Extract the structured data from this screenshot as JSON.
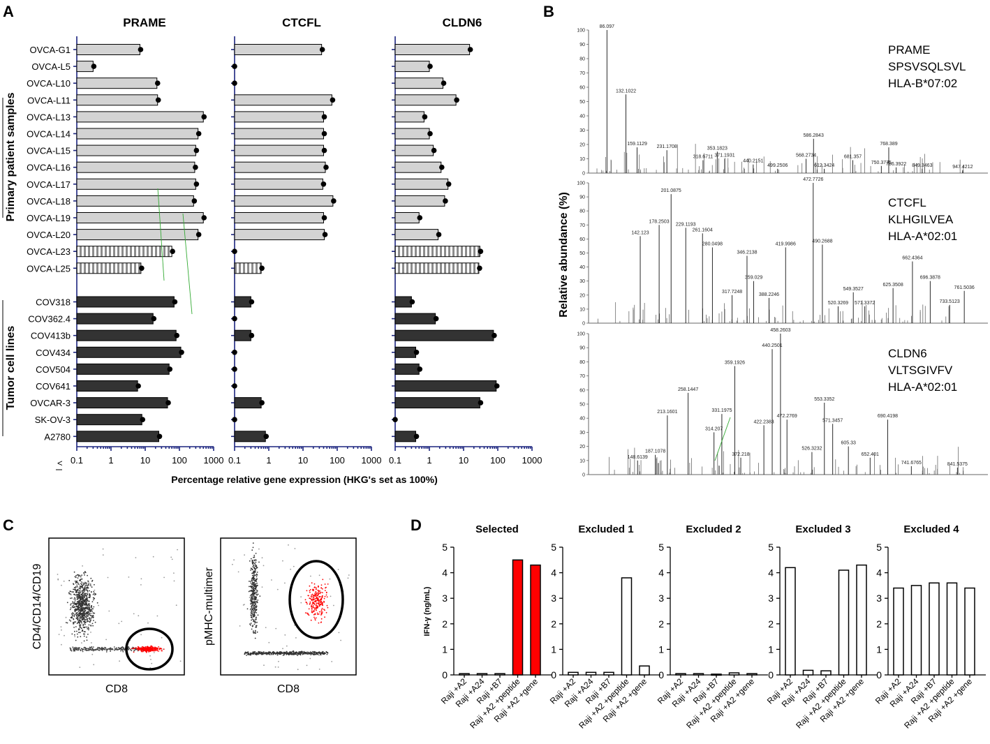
{
  "panels": {
    "a": "A",
    "b": "B",
    "c": "C",
    "d": "D"
  },
  "colors": {
    "primary": "#d3d3d3",
    "striped": "#a9a9a9",
    "cell": "#333333",
    "axis": "#1a237e",
    "red": "#ff0000"
  },
  "panel_a": {
    "genes": [
      "PRAME",
      "CTCFL",
      "CLDN6"
    ],
    "group_primary": "Primary patient samples",
    "group_lines": "Tumor cell lines",
    "xlabel": "Percentage relative gene expression (HKG's set as 100%)",
    "lt": "<",
    "xticks": [
      "0.1",
      "1",
      "10",
      "100",
      "1000"
    ]
  },
  "panel_b": {
    "ylabel": "Relative abundance (%)",
    "yticks": [
      "0",
      "10",
      "20",
      "30",
      "40",
      "50",
      "60",
      "70",
      "80",
      "90",
      "100"
    ]
  },
  "panel_c": {
    "plot1_y": "CD4/CD14/CD19",
    "plot1_x": "CD8",
    "plot2_y": "pMHC-multimer",
    "plot2_x": "CD8"
  },
  "panel_d": {
    "ylabel": "IFN-γ (ng/mL)",
    "yticks": [
      "0",
      "1",
      "2",
      "3",
      "4",
      "5"
    ]
  },
  "chart_data": [
    {
      "type": "bar",
      "title": "PRAME / CTCFL / CLDN6 gene expression",
      "xlabel": "Percentage relative gene expression (HKG's set as 100%)",
      "xscale": "log",
      "xlim": [
        0.1,
        1000
      ],
      "categories": [
        "OVCA-G1",
        "OVCA-L5",
        "OVCA-L10",
        "OVCA-L11",
        "OVCA-L13",
        "OVCA-L14",
        "OVCA-L15",
        "OVCA-L16",
        "OVCA-L17",
        "OVCA-L18",
        "OVCA-L19",
        "OVCA-L20",
        "OVCA-L23",
        "OVCA-L25",
        "",
        "COV318",
        "COV362.4",
        "COV413b",
        "COV434",
        "COV504",
        "COV641",
        "OVCAR-3",
        "SK-OV-3",
        "A2780"
      ],
      "groups": [
        "primary",
        "primary",
        "primary",
        "primary",
        "primary",
        "primary",
        "primary",
        "primary",
        "primary",
        "primary",
        "primary",
        "primary",
        "striped",
        "striped",
        "gap",
        "cell",
        "cell",
        "cell",
        "cell",
        "cell",
        "cell",
        "cell",
        "cell",
        "cell"
      ],
      "series": [
        {
          "name": "PRAME",
          "values": [
            7,
            0.3,
            22,
            23,
            500,
            350,
            300,
            280,
            300,
            260,
            500,
            350,
            60,
            7.5,
            null,
            70,
            17,
            80,
            110,
            50,
            6,
            45,
            8,
            25
          ]
        },
        {
          "name": "CTCFL",
          "values": [
            35,
            0.1,
            0.1,
            70,
            40,
            40,
            40,
            45,
            38,
            75,
            40,
            42,
            0.1,
            0.6,
            null,
            0.3,
            0.1,
            0.3,
            0.1,
            0.1,
            0.1,
            0.6,
            0.1,
            0.8
          ]
        },
        {
          "name": "CLDN6",
          "values": [
            15,
            1,
            2.5,
            6,
            0.7,
            1,
            1.3,
            2.2,
            3.5,
            2.8,
            0.5,
            1.8,
            30,
            28,
            null,
            0.3,
            1.5,
            75,
            0.4,
            0.5,
            90,
            30,
            0.1,
            0.4
          ]
        }
      ]
    },
    {
      "type": "line",
      "title": "PRAME SPSVSQLSVL HLA-B*07:02",
      "label_lines": [
        "PRAME",
        "SPSVSQLSVL",
        "HLA-B*07:02"
      ],
      "ylabel": "Relative abundance (%)",
      "ylim": [
        0,
        100
      ],
      "peaks": [
        [
          86.097,
          100
        ],
        [
          132.1022,
          55
        ],
        [
          159.1129,
          18
        ],
        [
          231.1708,
          16
        ],
        [
          318.6711,
          9
        ],
        [
          353.1823,
          15
        ],
        [
          371.1931,
          10
        ],
        [
          440.2151,
          6
        ],
        [
          499.2506,
          3
        ],
        [
          568.2734,
          10
        ],
        [
          586.2843,
          24
        ],
        [
          612.3424,
          3
        ],
        [
          681.357,
          9
        ],
        [
          750.3775,
          5
        ],
        [
          768.389,
          18
        ],
        [
          786.3922,
          4
        ],
        [
          849.3463,
          3
        ],
        [
          947.4212,
          2
        ]
      ]
    },
    {
      "type": "line",
      "title": "CTCFL KLHGILVEA HLA-A*02:01",
      "label_lines": [
        "CTCFL",
        "KLHGILVEA",
        "HLA-A*02:01"
      ],
      "ylim": [
        0,
        100
      ],
      "peaks": [
        [
          142.123,
          62
        ],
        [
          178.2503,
          70
        ],
        [
          201.0875,
          92
        ],
        [
          229.1193,
          68
        ],
        [
          261.1604,
          64
        ],
        [
          280.0498,
          54
        ],
        [
          317.7248,
          20
        ],
        [
          346.2138,
          48
        ],
        [
          359.029,
          30
        ],
        [
          388.2246,
          18
        ],
        [
          419.9986,
          54
        ],
        [
          472.7726,
          100
        ],
        [
          490.2688,
          56
        ],
        [
          520.3269,
          12
        ],
        [
          549.3527,
          22
        ],
        [
          571.3372,
          12
        ],
        [
          625.3508,
          25
        ],
        [
          662.4364,
          44
        ],
        [
          696.3878,
          30
        ],
        [
          733.5123,
          13
        ],
        [
          761.5036,
          23
        ]
      ]
    },
    {
      "type": "line",
      "title": "CLDN6 VLTSGIVFV HLA-A*02:01",
      "label_lines": [
        "CLDN6",
        "VLTSGIVFV",
        "HLA-A*02:01"
      ],
      "ylim": [
        0,
        100
      ],
      "peaks": [
        [
          148.6139,
          10
        ],
        [
          187.1078,
          14
        ],
        [
          213.1601,
          42
        ],
        [
          258.1447,
          58
        ],
        [
          314.207,
          30
        ],
        [
          331.1975,
          43
        ],
        [
          359.1926,
          77
        ],
        [
          372.218,
          12
        ],
        [
          422.2383,
          35
        ],
        [
          440.2501,
          89
        ],
        [
          458.2603,
          100
        ],
        [
          472.2769,
          39
        ],
        [
          526.3232,
          16
        ],
        [
          553.3352,
          51
        ],
        [
          571.3457,
          36
        ],
        [
          605.33,
          20
        ],
        [
          652.401,
          12
        ],
        [
          690.4198,
          39
        ],
        [
          741.6765,
          6
        ],
        [
          841.5375,
          5
        ]
      ]
    },
    {
      "type": "bar",
      "ylabel": "IFN-γ (ng/mL)",
      "ylim": [
        0,
        5
      ],
      "categories": [
        "Raji +A2",
        "Raji +A24",
        "Raji +B7",
        "Raji +A2 +peptide",
        "Raji +A2 +gene"
      ],
      "series": [
        {
          "name": "Selected",
          "values": [
            0.05,
            0.05,
            0.05,
            4.5,
            4.3
          ]
        },
        {
          "name": "Excluded 1",
          "values": [
            0.1,
            0.1,
            0.1,
            3.8,
            0.35
          ]
        },
        {
          "name": "Excluded 2",
          "values": [
            0.05,
            0.05,
            0.03,
            0.08,
            0.05
          ]
        },
        {
          "name": "Excluded 3",
          "values": [
            4.2,
            0.18,
            0.16,
            4.1,
            4.3
          ]
        },
        {
          "name": "Excluded 4",
          "values": [
            3.4,
            3.5,
            3.6,
            3.6,
            3.4
          ]
        }
      ]
    }
  ]
}
